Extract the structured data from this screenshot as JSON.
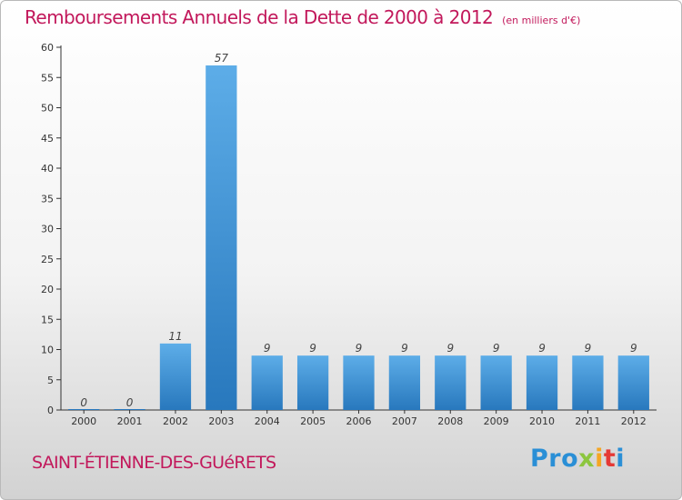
{
  "header": {
    "title": "Remboursements Annuels de la Dette de 2000 à 2012",
    "unit": "(en milliers d'€)"
  },
  "footer": {
    "commune": "SAINT-ÉTIENNE-DES-GUéRETS",
    "logo": {
      "p1": "Pro",
      "p2": "x",
      "p3": "i",
      "p4": "t",
      "p5": "i"
    }
  },
  "colors": {
    "bar_top": "#5dade8",
    "bar_bottom": "#2878bd",
    "title": "#c2185b"
  },
  "chart_data": {
    "type": "bar",
    "title": "Remboursements Annuels de la Dette de 2000 à 2012",
    "subtitle": "(en milliers d'€)",
    "xlabel": "",
    "ylabel": "",
    "categories": [
      "2000",
      "2001",
      "2002",
      "2003",
      "2004",
      "2005",
      "2006",
      "2007",
      "2008",
      "2009",
      "2010",
      "2011",
      "2012"
    ],
    "values": [
      0,
      0,
      11,
      57,
      9,
      9,
      9,
      9,
      9,
      9,
      9,
      9,
      9
    ],
    "data_labels": [
      "0",
      "0",
      "11",
      "57",
      "9",
      "9",
      "9",
      "9",
      "9",
      "9",
      "9",
      "9",
      "9"
    ],
    "ylim": [
      0,
      60
    ],
    "yticks": [
      0,
      5,
      10,
      15,
      20,
      25,
      30,
      35,
      40,
      45,
      50,
      55,
      60
    ],
    "grid": false,
    "legend": "none"
  }
}
